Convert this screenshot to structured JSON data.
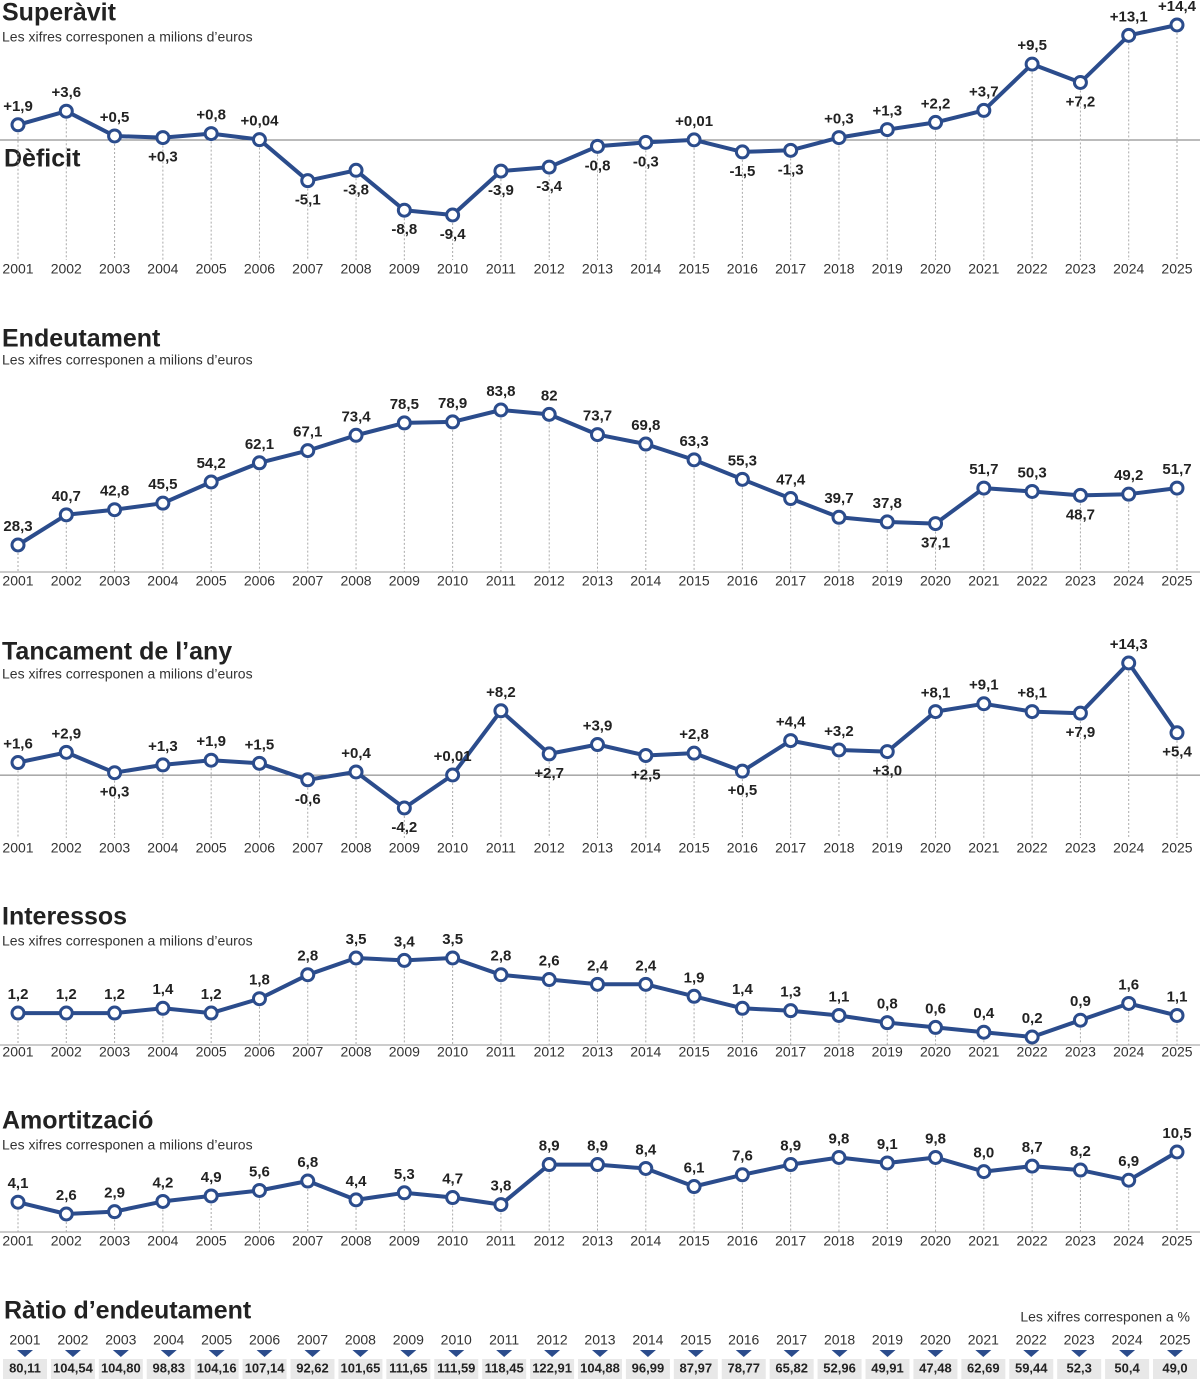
{
  "chart_data": [
    {
      "type": "line",
      "title": "Superàvit",
      "subtitle": "Les xifres corresponen a milions d’euros",
      "annotation": "Dèficit",
      "color": "#2b4c8c",
      "zero_line": true,
      "categories": [
        "2001",
        "2002",
        "2003",
        "2004",
        "2005",
        "2006",
        "2007",
        "2008",
        "2009",
        "2010",
        "2011",
        "2012",
        "2013",
        "2014",
        "2015",
        "2016",
        "2017",
        "2018",
        "2019",
        "2020",
        "2021",
        "2022",
        "2023",
        "2024",
        "2025"
      ],
      "values": [
        1.9,
        3.6,
        0.5,
        0.3,
        0.8,
        0.04,
        -5.1,
        -3.8,
        -8.8,
        -9.4,
        -3.9,
        -3.4,
        -0.8,
        -0.3,
        0.01,
        -1.5,
        -1.3,
        0.3,
        1.3,
        2.2,
        3.7,
        9.5,
        7.2,
        13.1,
        14.4
      ],
      "value_labels": [
        "+1,9",
        "+3,6",
        "+0,5",
        "+0,3",
        "+0,8",
        "+0,04",
        "-5,1",
        "-3,8",
        "-8,8",
        "-9,4",
        "-3,9",
        "-3,4",
        "-0,8",
        "-0,3",
        "+0,01",
        "-1,5",
        "-1,3",
        "+0,3",
        "+1,3",
        "+2,2",
        "+3,7",
        "+9,5",
        "+7,2",
        "+13,1",
        "+14,4"
      ]
    },
    {
      "type": "line",
      "title": "Endeutament",
      "subtitle": "Les xifres corresponen a milions d’euros",
      "color": "#2b4c8c",
      "zero_line": false,
      "categories": [
        "2001",
        "2002",
        "2003",
        "2004",
        "2005",
        "2006",
        "2007",
        "2008",
        "2009",
        "2010",
        "2011",
        "2012",
        "2013",
        "2014",
        "2015",
        "2016",
        "2017",
        "2018",
        "2019",
        "2020",
        "2021",
        "2022",
        "2023",
        "2024",
        "2025"
      ],
      "values": [
        28.3,
        40.7,
        42.8,
        45.5,
        54.2,
        62.1,
        67.1,
        73.4,
        78.5,
        78.9,
        83.8,
        82,
        73.7,
        69.8,
        63.3,
        55.3,
        47.4,
        39.7,
        37.8,
        37.1,
        51.7,
        50.3,
        48.7,
        49.2,
        51.7
      ],
      "value_labels": [
        "28,3",
        "40,7",
        "42,8",
        "45,5",
        "54,2",
        "62,1",
        "67,1",
        "73,4",
        "78,5",
        "78,9",
        "83,8",
        "82",
        "73,7",
        "69,8",
        "63,3",
        "55,3",
        "47,4",
        "39,7",
        "37,8",
        "37,1",
        "51,7",
        "50,3",
        "48,7",
        "49,2",
        "51,7"
      ]
    },
    {
      "type": "line",
      "title": "Tancament de l’any",
      "subtitle": "Les xifres corresponen a milions d’euros",
      "color": "#2b4c8c",
      "zero_line": true,
      "categories": [
        "2001",
        "2002",
        "2003",
        "2004",
        "2005",
        "2006",
        "2007",
        "2008",
        "2009",
        "2010",
        "2011",
        "2012",
        "2013",
        "2014",
        "2015",
        "2016",
        "2017",
        "2018",
        "2019",
        "2020",
        "2021",
        "2022",
        "2023",
        "2024",
        "2025"
      ],
      "values": [
        1.6,
        2.9,
        0.3,
        1.3,
        1.9,
        1.5,
        -0.6,
        0.4,
        -4.2,
        0.01,
        8.2,
        2.7,
        3.9,
        2.5,
        2.8,
        0.5,
        4.4,
        3.2,
        3.0,
        8.1,
        9.1,
        8.1,
        7.9,
        14.3,
        5.4
      ],
      "value_labels": [
        "+1,6",
        "+2,9",
        "+0,3",
        "+1,3",
        "+1,9",
        "+1,5",
        "-0,6",
        "+0,4",
        "-4,2",
        "+0,01",
        "+8,2",
        "+2,7",
        "+3,9",
        "+2,5",
        "+2,8",
        "+0,5",
        "+4,4",
        "+3,2",
        "+3,0",
        "+8,1",
        "+9,1",
        "+8,1",
        "+7,9",
        "+14,3",
        "+5,4"
      ]
    },
    {
      "type": "line",
      "title": "Interessos",
      "subtitle": "Les xifres corresponen a milions d’euros",
      "color": "#2b4c8c",
      "zero_line": false,
      "categories": [
        "2001",
        "2002",
        "2003",
        "2004",
        "2005",
        "2006",
        "2007",
        "2008",
        "2009",
        "2010",
        "2011",
        "2012",
        "2013",
        "2014",
        "2015",
        "2016",
        "2017",
        "2018",
        "2019",
        "2020",
        "2021",
        "2022",
        "2023",
        "2024",
        "2025"
      ],
      "values": [
        1.2,
        1.2,
        1.2,
        1.4,
        1.2,
        1.8,
        2.8,
        3.5,
        3.4,
        3.5,
        2.8,
        2.6,
        2.4,
        2.4,
        1.9,
        1.4,
        1.3,
        1.1,
        0.8,
        0.6,
        0.4,
        0.2,
        0.9,
        1.6,
        1.1
      ],
      "value_labels": [
        "1,2",
        "1,2",
        "1,2",
        "1,4",
        "1,2",
        "1,8",
        "2,8",
        "3,5",
        "3,4",
        "3,5",
        "2,8",
        "2,6",
        "2,4",
        "2,4",
        "1,9",
        "1,4",
        "1,3",
        "1,1",
        "0,8",
        "0,6",
        "0,4",
        "0,2",
        "0,9",
        "1,6",
        "1,1"
      ]
    },
    {
      "type": "line",
      "title": "Amortització",
      "subtitle": "Les xifres corresponen a milions d’euros",
      "color": "#2b4c8c",
      "zero_line": false,
      "categories": [
        "2001",
        "2002",
        "2003",
        "2004",
        "2005",
        "2006",
        "2007",
        "2008",
        "2009",
        "2010",
        "2011",
        "2012",
        "2013",
        "2014",
        "2015",
        "2016",
        "2017",
        "2018",
        "2019",
        "2020",
        "2021",
        "2022",
        "2023",
        "2024",
        "2025"
      ],
      "values": [
        4.1,
        2.6,
        2.9,
        4.2,
        4.9,
        5.6,
        6.8,
        4.4,
        5.3,
        4.7,
        3.8,
        8.9,
        8.9,
        8.4,
        6.1,
        7.6,
        8.9,
        9.8,
        9.1,
        9.8,
        8.0,
        8.7,
        8.2,
        6.9,
        10.5
      ],
      "value_labels": [
        "4,1",
        "2,6",
        "2,9",
        "4,2",
        "4,9",
        "5,6",
        "6,8",
        "4,4",
        "5,3",
        "4,7",
        "3,8",
        "8,9",
        "8,9",
        "8,4",
        "6,1",
        "7,6",
        "8,9",
        "9,8",
        "9,1",
        "9,8",
        "8,0",
        "8,7",
        "8,2",
        "6,9",
        "10,5"
      ]
    }
  ],
  "table": {
    "title": "Ràtio d’endeutament",
    "note": "Les xifres corresponen a %",
    "columns": [
      "2001",
      "2002",
      "2003",
      "2004",
      "2005",
      "2006",
      "2007",
      "2008",
      "2009",
      "2010",
      "2011",
      "2012",
      "2013",
      "2014",
      "2015",
      "2016",
      "2017",
      "2018",
      "2019",
      "2020",
      "2021",
      "2022",
      "2023",
      "2024",
      "2025"
    ],
    "values": [
      "80,11",
      "104,54",
      "104,80",
      "98,83",
      "104,16",
      "107,14",
      "92,62",
      "101,65",
      "111,65",
      "111,59",
      "118,45",
      "122,91",
      "104,88",
      "96,99",
      "87,97",
      "78,77",
      "65,82",
      "52,96",
      "49,91",
      "47,48",
      "62,69",
      "59,44",
      "52,3",
      "50,4",
      "49,0"
    ]
  }
}
